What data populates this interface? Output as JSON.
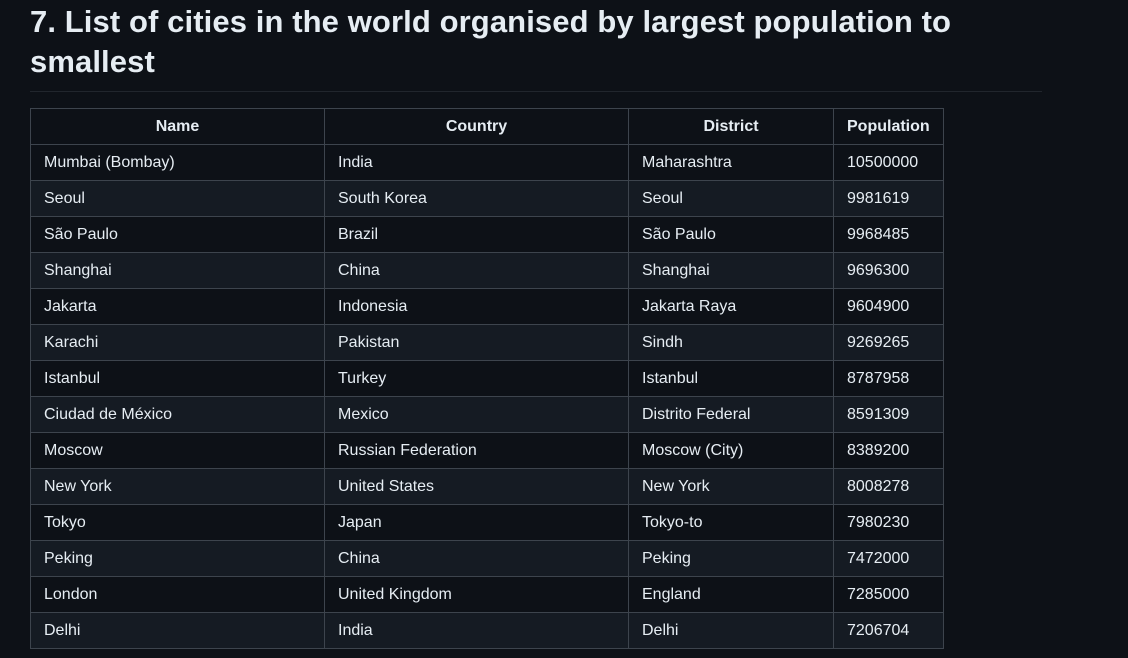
{
  "heading": "7. List of cities in the world organised by largest population to smallest",
  "table": {
    "columns": [
      "Name",
      "Country",
      "District",
      "Population"
    ],
    "rows": [
      [
        "Mumbai (Bombay)",
        "India",
        "Maharashtra",
        "10500000"
      ],
      [
        "Seoul",
        "South Korea",
        "Seoul",
        "9981619"
      ],
      [
        "São Paulo",
        "Brazil",
        "São Paulo",
        "9968485"
      ],
      [
        "Shanghai",
        "China",
        "Shanghai",
        "9696300"
      ],
      [
        "Jakarta",
        "Indonesia",
        "Jakarta Raya",
        "9604900"
      ],
      [
        "Karachi",
        "Pakistan",
        "Sindh",
        "9269265"
      ],
      [
        "Istanbul",
        "Turkey",
        "Istanbul",
        "8787958"
      ],
      [
        "Ciudad de México",
        "Mexico",
        "Distrito Federal",
        "8591309"
      ],
      [
        "Moscow",
        "Russian Federation",
        "Moscow (City)",
        "8389200"
      ],
      [
        "New York",
        "United States",
        "New York",
        "8008278"
      ],
      [
        "Tokyo",
        "Japan",
        "Tokyo-to",
        "7980230"
      ],
      [
        "Peking",
        "China",
        "Peking",
        "7472000"
      ],
      [
        "London",
        "United Kingdom",
        "England",
        "7285000"
      ],
      [
        "Delhi",
        "India",
        "Delhi",
        "7206704"
      ]
    ]
  }
}
